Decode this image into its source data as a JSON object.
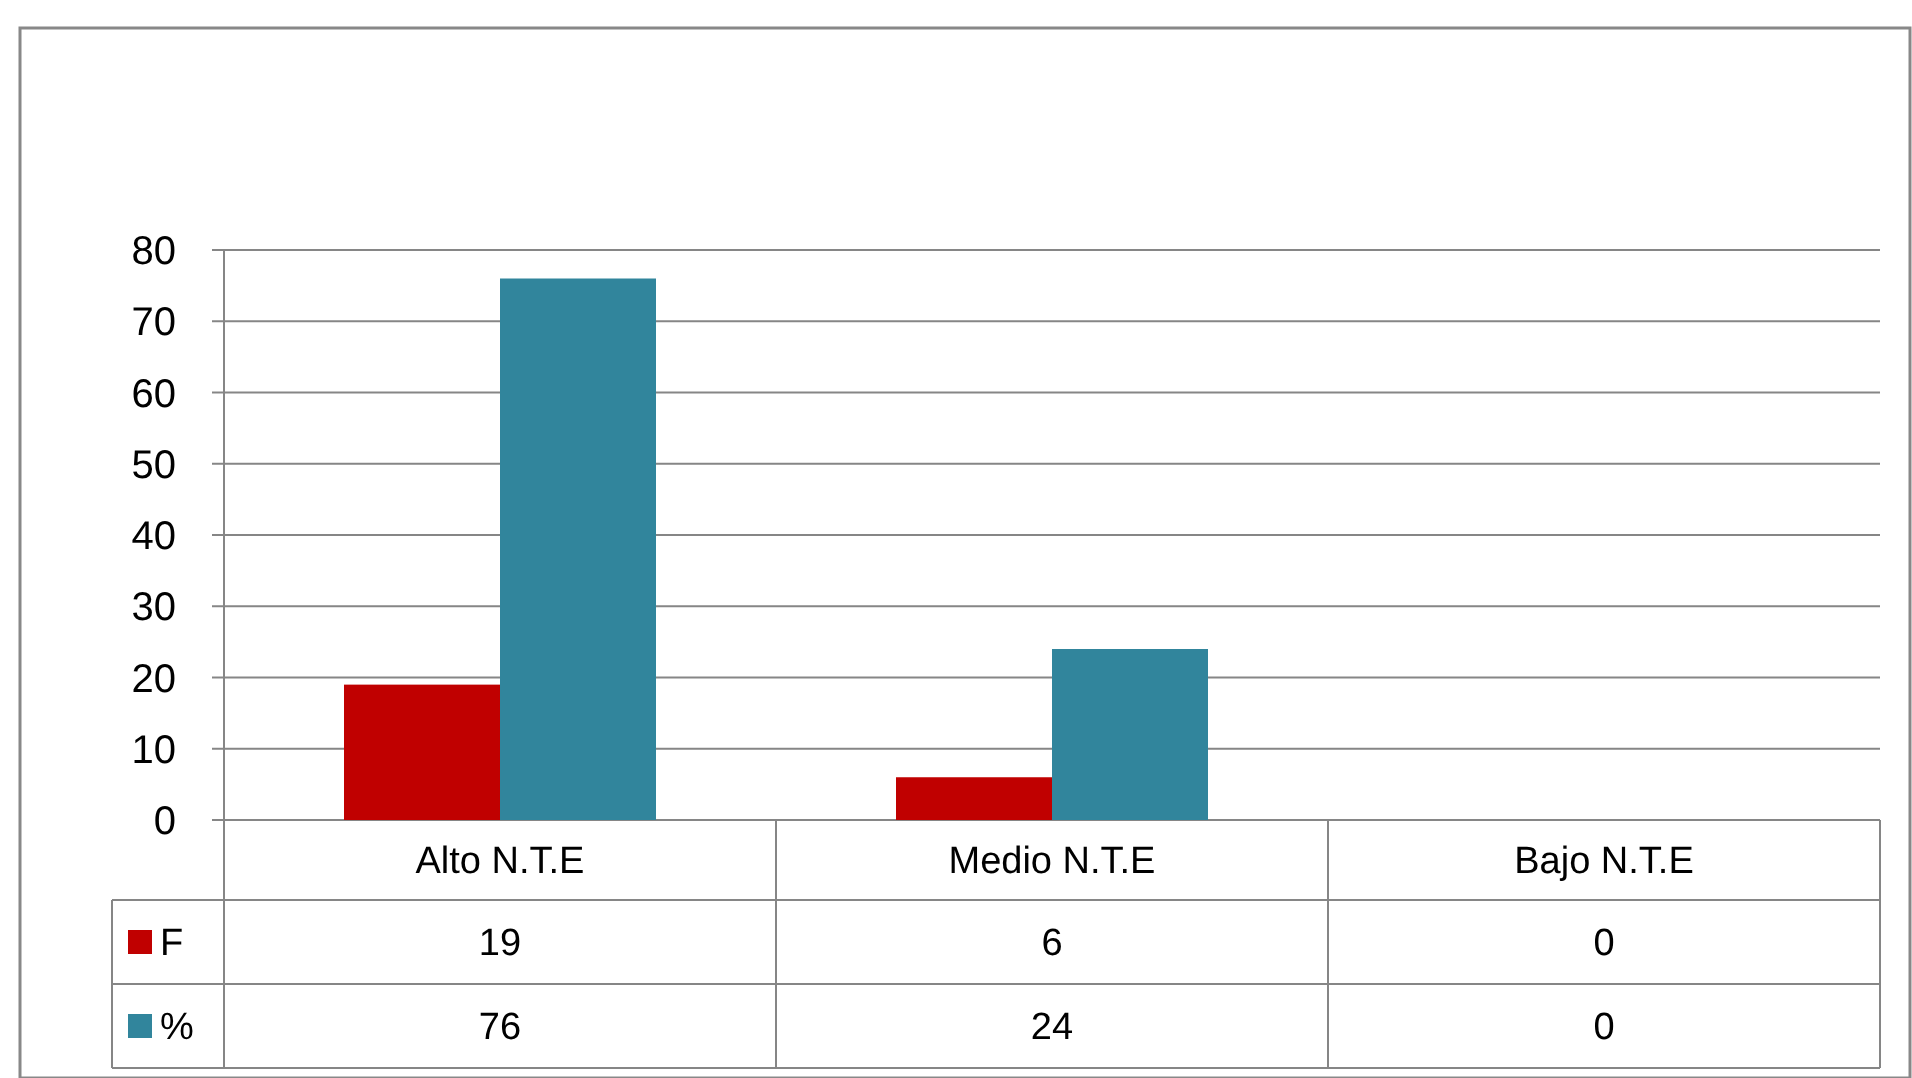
{
  "chart_data": {
    "type": "bar",
    "categories": [
      "Alto N.T.E",
      "Medio N.T.E",
      "Bajo N.T.E"
    ],
    "series": [
      {
        "name": "F",
        "color": "#c00000",
        "values": [
          19,
          6,
          0
        ]
      },
      {
        "name": "%",
        "color": "#31859c",
        "values": [
          76,
          24,
          0
        ]
      }
    ],
    "ylim": [
      0,
      80
    ],
    "yticks": [
      0,
      10,
      20,
      30,
      40,
      50,
      60,
      70,
      80
    ],
    "grid": "y",
    "legend": "bottom",
    "data_labels": true
  }
}
